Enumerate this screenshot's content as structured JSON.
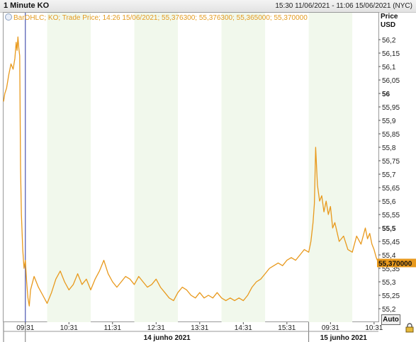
{
  "header": {
    "title": "1 Minute KO",
    "range": "15:30 11/06/2021 - 11:06 15/06/2021 (NYC)"
  },
  "legend": {
    "text": "BarOHLC; KO; Trade Price;  14:26 15/06/2021; 55,376300; 55,376300; 55,365000; 55,370000"
  },
  "axis": {
    "price_label": "Price",
    "currency_label": "USD",
    "auto_label": "Auto"
  },
  "colors": {
    "line": "#e8991c",
    "band_light": "#f1f8ec",
    "crosshair": "#4a55b0",
    "last_price_bg": "#e8991c"
  },
  "chart_data": {
    "type": "line",
    "title": "1 Minute KO",
    "ylabel": "Price USD",
    "ylim": [
      55.15,
      56.3
    ],
    "yticks": [
      {
        "value": 56.2,
        "label": "56,2",
        "bold": false
      },
      {
        "value": 56.15,
        "label": "56,15",
        "bold": false
      },
      {
        "value": 56.1,
        "label": "56,1",
        "bold": false
      },
      {
        "value": 56.05,
        "label": "56,05",
        "bold": false
      },
      {
        "value": 56.0,
        "label": "56",
        "bold": true
      },
      {
        "value": 55.95,
        "label": "55,95",
        "bold": false
      },
      {
        "value": 55.9,
        "label": "55,9",
        "bold": false
      },
      {
        "value": 55.85,
        "label": "55,85",
        "bold": false
      },
      {
        "value": 55.8,
        "label": "55,8",
        "bold": false
      },
      {
        "value": 55.75,
        "label": "55,75",
        "bold": false
      },
      {
        "value": 55.7,
        "label": "55,7",
        "bold": false
      },
      {
        "value": 55.65,
        "label": "55,65",
        "bold": false
      },
      {
        "value": 55.6,
        "label": "55,6",
        "bold": false
      },
      {
        "value": 55.55,
        "label": "55,55",
        "bold": false
      },
      {
        "value": 55.5,
        "label": "55,5",
        "bold": true
      },
      {
        "value": 55.45,
        "label": "55,45",
        "bold": false
      },
      {
        "value": 55.4,
        "label": "55,4",
        "bold": false
      },
      {
        "value": 55.35,
        "label": "55,35",
        "bold": false
      },
      {
        "value": 55.3,
        "label": "55,3",
        "bold": false
      },
      {
        "value": 55.25,
        "label": "55,25",
        "bold": false
      },
      {
        "value": 55.2,
        "label": "55,2",
        "bold": false
      }
    ],
    "last_price": {
      "value": 55.37,
      "label": "55,370000"
    },
    "xticks": [
      "09:31",
      "10:31",
      "11:31",
      "12:31",
      "13:31",
      "14:31",
      "15:31",
      "09:31",
      "10:31"
    ],
    "sessions": [
      {
        "label": "",
        "start": -0.5,
        "end": 0.0
      },
      {
        "label": "14 junho 2021",
        "start": 0.0,
        "end": 6.5
      },
      {
        "label": "15 junho 2021",
        "start": 6.5,
        "end": 8.1
      }
    ],
    "crosshair_x": 0.0,
    "series": [
      {
        "points": [
          [
            -0.5,
            55.97
          ],
          [
            -0.47,
            56.0
          ],
          [
            -0.43,
            56.02
          ],
          [
            -0.38,
            56.07
          ],
          [
            -0.33,
            56.11
          ],
          [
            -0.28,
            56.09
          ],
          [
            -0.24,
            56.13
          ],
          [
            -0.21,
            56.19
          ],
          [
            -0.19,
            56.16
          ],
          [
            -0.17,
            56.21
          ],
          [
            -0.15,
            56.17
          ],
          [
            -0.13,
            56.14
          ],
          [
            -0.11,
            55.72
          ],
          [
            -0.09,
            55.55
          ],
          [
            -0.06,
            55.42
          ],
          [
            -0.03,
            55.35
          ],
          [
            0.0,
            55.38
          ],
          [
            0.03,
            55.3
          ],
          [
            0.06,
            55.24
          ],
          [
            0.09,
            55.21
          ],
          [
            0.12,
            55.27
          ],
          [
            0.2,
            55.32
          ],
          [
            0.3,
            55.28
          ],
          [
            0.4,
            55.25
          ],
          [
            0.5,
            55.22
          ],
          [
            0.6,
            55.26
          ],
          [
            0.7,
            55.31
          ],
          [
            0.8,
            55.34
          ],
          [
            0.9,
            55.3
          ],
          [
            1.0,
            55.27
          ],
          [
            1.1,
            55.29
          ],
          [
            1.2,
            55.33
          ],
          [
            1.3,
            55.29
          ],
          [
            1.4,
            55.31
          ],
          [
            1.5,
            55.27
          ],
          [
            1.6,
            55.31
          ],
          [
            1.7,
            55.34
          ],
          [
            1.8,
            55.38
          ],
          [
            1.9,
            55.33
          ],
          [
            2.0,
            55.3
          ],
          [
            2.1,
            55.28
          ],
          [
            2.2,
            55.3
          ],
          [
            2.3,
            55.32
          ],
          [
            2.4,
            55.31
          ],
          [
            2.5,
            55.29
          ],
          [
            2.6,
            55.32
          ],
          [
            2.7,
            55.3
          ],
          [
            2.8,
            55.28
          ],
          [
            2.9,
            55.29
          ],
          [
            3.0,
            55.31
          ],
          [
            3.1,
            55.28
          ],
          [
            3.2,
            55.26
          ],
          [
            3.3,
            55.24
          ],
          [
            3.4,
            55.23
          ],
          [
            3.5,
            55.26
          ],
          [
            3.6,
            55.28
          ],
          [
            3.7,
            55.27
          ],
          [
            3.8,
            55.25
          ],
          [
            3.9,
            55.24
          ],
          [
            4.0,
            55.26
          ],
          [
            4.1,
            55.24
          ],
          [
            4.2,
            55.25
          ],
          [
            4.3,
            55.24
          ],
          [
            4.4,
            55.26
          ],
          [
            4.5,
            55.24
          ],
          [
            4.6,
            55.23
          ],
          [
            4.7,
            55.24
          ],
          [
            4.8,
            55.23
          ],
          [
            4.9,
            55.24
          ],
          [
            5.0,
            55.23
          ],
          [
            5.1,
            55.25
          ],
          [
            5.2,
            55.28
          ],
          [
            5.3,
            55.3
          ],
          [
            5.4,
            55.31
          ],
          [
            5.5,
            55.33
          ],
          [
            5.6,
            55.35
          ],
          [
            5.7,
            55.36
          ],
          [
            5.8,
            55.37
          ],
          [
            5.9,
            55.36
          ],
          [
            6.0,
            55.38
          ],
          [
            6.1,
            55.39
          ],
          [
            6.2,
            55.38
          ],
          [
            6.3,
            55.4
          ],
          [
            6.4,
            55.42
          ],
          [
            6.5,
            55.41
          ],
          [
            6.55,
            55.45
          ],
          [
            6.6,
            55.52
          ],
          [
            6.63,
            55.59
          ],
          [
            6.66,
            55.8
          ],
          [
            6.7,
            55.66
          ],
          [
            6.75,
            55.6
          ],
          [
            6.8,
            55.62
          ],
          [
            6.85,
            55.56
          ],
          [
            6.9,
            55.6
          ],
          [
            6.95,
            55.55
          ],
          [
            7.0,
            55.58
          ],
          [
            7.05,
            55.5
          ],
          [
            7.1,
            55.52
          ],
          [
            7.2,
            55.45
          ],
          [
            7.3,
            55.47
          ],
          [
            7.4,
            55.42
          ],
          [
            7.5,
            55.41
          ],
          [
            7.6,
            55.47
          ],
          [
            7.7,
            55.44
          ],
          [
            7.8,
            55.5
          ],
          [
            7.85,
            55.46
          ],
          [
            7.9,
            55.48
          ],
          [
            7.95,
            55.44
          ],
          [
            8.0,
            55.42
          ],
          [
            8.05,
            55.39
          ],
          [
            8.1,
            55.37
          ]
        ]
      }
    ]
  }
}
